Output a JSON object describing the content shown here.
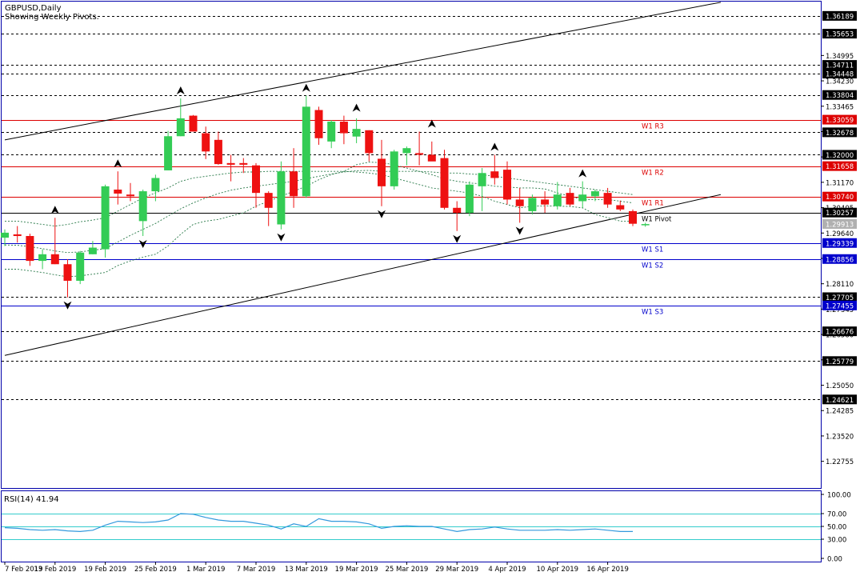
{
  "header": {
    "symbol_label": "GBPUSD,Daily",
    "subtitle": "Showing Weekly Pivots."
  },
  "rsi_label": "RSI(14) 41.94",
  "colors": {
    "bull": "#33cc55",
    "bear": "#ee1111",
    "axis_frame": "#0000aa",
    "price_tag_bg": "#000000",
    "current_tag_bg": "#b0b0b0",
    "resistance": "#dd0000",
    "support": "#0000cc",
    "rsi_level": "#33cccc",
    "rsi_line": "#3399dd",
    "envelope": "#2a7a4a"
  },
  "chart_data": [
    {
      "type": "candlestick",
      "title": "GBPUSD,Daily",
      "subtitle": "Showing Weekly Pivots.",
      "ylim": [
        1.2195,
        1.3662
      ],
      "y_ticks": [
        1.34995,
        1.3423,
        1.33465,
        1.327,
        1.31935,
        1.3117,
        1.30405,
        1.2964,
        1.28875,
        1.2811,
        1.27345,
        1.2658,
        1.25815,
        1.2505,
        1.24285,
        1.2352,
        1.22755
      ],
      "x_tick_labels": [
        {
          "index": 0,
          "label": "7 Feb 2019"
        },
        {
          "index": 4,
          "label": "13 Feb 2019"
        },
        {
          "index": 8,
          "label": "19 Feb 2019"
        },
        {
          "index": 12,
          "label": "25 Feb 2019"
        },
        {
          "index": 16,
          "label": "1 Mar 2019"
        },
        {
          "index": 20,
          "label": "7 Mar 2019"
        },
        {
          "index": 24,
          "label": "13 Mar 2019"
        },
        {
          "index": 28,
          "label": "19 Mar 2019"
        },
        {
          "index": 32,
          "label": "25 Mar 2019"
        },
        {
          "index": 36,
          "label": "29 Mar 2019"
        },
        {
          "index": 40,
          "label": "4 Apr 2019"
        },
        {
          "index": 44,
          "label": "10 Apr 2019"
        },
        {
          "index": 48,
          "label": "16 Apr 2019"
        }
      ],
      "candles": [
        {
          "o": 1.295,
          "h": 1.2975,
          "l": 1.2925,
          "c": 1.2965
        },
        {
          "o": 1.296,
          "h": 1.2985,
          "l": 1.2935,
          "c": 1.2955
        },
        {
          "o": 1.2955,
          "h": 1.2962,
          "l": 1.2865,
          "c": 1.288
        },
        {
          "o": 1.288,
          "h": 1.2915,
          "l": 1.2855,
          "c": 1.29
        },
        {
          "o": 1.29,
          "h": 1.301,
          "l": 1.287,
          "c": 1.287
        },
        {
          "o": 1.287,
          "h": 1.2885,
          "l": 1.277,
          "c": 1.282
        },
        {
          "o": 1.282,
          "h": 1.291,
          "l": 1.281,
          "c": 1.2905
        },
        {
          "o": 1.29,
          "h": 1.294,
          "l": 1.29,
          "c": 1.292
        },
        {
          "o": 1.2915,
          "h": 1.311,
          "l": 1.289,
          "c": 1.3105
        },
        {
          "o": 1.3095,
          "h": 1.315,
          "l": 1.305,
          "c": 1.3083
        },
        {
          "o": 1.308,
          "h": 1.3115,
          "l": 1.306,
          "c": 1.3075
        },
        {
          "o": 1.3,
          "h": 1.3095,
          "l": 1.2955,
          "c": 1.309
        },
        {
          "o": 1.309,
          "h": 1.314,
          "l": 1.306,
          "c": 1.313
        },
        {
          "o": 1.3153,
          "h": 1.3272,
          "l": 1.3153,
          "c": 1.3256
        },
        {
          "o": 1.3256,
          "h": 1.337,
          "l": 1.3256,
          "c": 1.331
        },
        {
          "o": 1.3318,
          "h": 1.332,
          "l": 1.327,
          "c": 1.327
        },
        {
          "o": 1.3265,
          "h": 1.3285,
          "l": 1.3187,
          "c": 1.321
        },
        {
          "o": 1.3245,
          "h": 1.327,
          "l": 1.317,
          "c": 1.3172
        },
        {
          "o": 1.3175,
          "h": 1.32,
          "l": 1.312,
          "c": 1.317
        },
        {
          "o": 1.3175,
          "h": 1.319,
          "l": 1.3145,
          "c": 1.317
        },
        {
          "o": 1.3168,
          "h": 1.3175,
          "l": 1.304,
          "c": 1.3085
        },
        {
          "o": 1.3085,
          "h": 1.309,
          "l": 1.2985,
          "c": 1.304
        },
        {
          "o": 1.299,
          "h": 1.318,
          "l": 1.2975,
          "c": 1.315
        },
        {
          "o": 1.315,
          "h": 1.322,
          "l": 1.304,
          "c": 1.3075
        },
        {
          "o": 1.3075,
          "h": 1.3378,
          "l": 1.307,
          "c": 1.3345
        },
        {
          "o": 1.3335,
          "h": 1.3345,
          "l": 1.323,
          "c": 1.325
        },
        {
          "o": 1.324,
          "h": 1.3305,
          "l": 1.322,
          "c": 1.33
        },
        {
          "o": 1.33,
          "h": 1.3318,
          "l": 1.3232,
          "c": 1.3265
        },
        {
          "o": 1.3255,
          "h": 1.331,
          "l": 1.3235,
          "c": 1.3278
        },
        {
          "o": 1.3274,
          "h": 1.3274,
          "l": 1.318,
          "c": 1.3205
        },
        {
          "o": 1.3188,
          "h": 1.3245,
          "l": 1.3045,
          "c": 1.3105
        },
        {
          "o": 1.3105,
          "h": 1.3215,
          "l": 1.3095,
          "c": 1.321
        },
        {
          "o": 1.3205,
          "h": 1.3225,
          "l": 1.3168,
          "c": 1.322
        },
        {
          "o": 1.3205,
          "h": 1.327,
          "l": 1.3168,
          "c": 1.32
        },
        {
          "o": 1.32,
          "h": 1.324,
          "l": 1.3185,
          "c": 1.318
        },
        {
          "o": 1.319,
          "h": 1.3215,
          "l": 1.3035,
          "c": 1.304
        },
        {
          "o": 1.304,
          "h": 1.306,
          "l": 1.297,
          "c": 1.3025
        },
        {
          "o": 1.3025,
          "h": 1.312,
          "l": 1.3015,
          "c": 1.311
        },
        {
          "o": 1.3105,
          "h": 1.316,
          "l": 1.303,
          "c": 1.3145
        },
        {
          "o": 1.315,
          "h": 1.32,
          "l": 1.311,
          "c": 1.313
        },
        {
          "o": 1.3155,
          "h": 1.318,
          "l": 1.305,
          "c": 1.3065
        },
        {
          "o": 1.3065,
          "h": 1.31,
          "l": 1.2995,
          "c": 1.3045
        },
        {
          "o": 1.303,
          "h": 1.308,
          "l": 1.302,
          "c": 1.307
        },
        {
          "o": 1.3065,
          "h": 1.309,
          "l": 1.3025,
          "c": 1.305
        },
        {
          "o": 1.3045,
          "h": 1.3118,
          "l": 1.3035,
          "c": 1.308
        },
        {
          "o": 1.3085,
          "h": 1.31,
          "l": 1.3045,
          "c": 1.305
        },
        {
          "o": 1.306,
          "h": 1.312,
          "l": 1.304,
          "c": 1.308
        },
        {
          "o": 1.3075,
          "h": 1.3095,
          "l": 1.306,
          "c": 1.309
        },
        {
          "o": 1.3085,
          "h": 1.31,
          "l": 1.304,
          "c": 1.305
        },
        {
          "o": 1.3048,
          "h": 1.3062,
          "l": 1.303,
          "c": 1.3035
        },
        {
          "o": 1.303,
          "h": 1.3035,
          "l": 1.2985,
          "c": 1.2992
        },
        {
          "o": 1.2989,
          "h": 1.2995,
          "l": 1.2983,
          "c": 1.2991
        }
      ],
      "fractals_up": [
        {
          "index": 4,
          "price": 1.301
        },
        {
          "index": 9,
          "price": 1.315
        },
        {
          "index": 14,
          "price": 1.337
        },
        {
          "index": 24,
          "price": 1.3378
        },
        {
          "index": 28,
          "price": 1.3318
        },
        {
          "index": 34,
          "price": 1.327
        },
        {
          "index": 39,
          "price": 1.32
        },
        {
          "index": 46,
          "price": 1.312
        }
      ],
      "fractals_down": [
        {
          "index": 5,
          "price": 1.277
        },
        {
          "index": 11,
          "price": 1.2955
        },
        {
          "index": 22,
          "price": 1.2975
        },
        {
          "index": 30,
          "price": 1.3045
        },
        {
          "index": 36,
          "price": 1.297
        },
        {
          "index": 41,
          "price": 1.2995
        }
      ],
      "upper_band": [
        1.3,
        1.3,
        1.2995,
        1.299,
        1.2985,
        1.299,
        1.2998,
        1.3003,
        1.301,
        1.303,
        1.305,
        1.307,
        1.3085,
        1.31,
        1.312,
        1.313,
        1.3135,
        1.314,
        1.3145,
        1.3148,
        1.3148,
        1.315,
        1.315,
        1.315,
        1.315,
        1.315,
        1.315,
        1.315,
        1.3148,
        1.3145,
        1.314,
        1.313,
        1.312,
        1.311,
        1.31,
        1.3095,
        1.309,
        1.3085,
        1.3075,
        1.306,
        1.305,
        1.304,
        1.3045,
        1.3046,
        1.3045,
        1.3044,
        1.304,
        1.302,
        1.301,
        1.3,
        1.3
      ],
      "mid_band": [
        1.2928,
        1.2927,
        1.2923,
        1.2917,
        1.291,
        1.2905,
        1.2907,
        1.2912,
        1.2917,
        1.2937,
        1.2957,
        1.2975,
        1.2993,
        1.3015,
        1.3037,
        1.3055,
        1.307,
        1.3083,
        1.3093,
        1.31,
        1.3105,
        1.311,
        1.3115,
        1.312,
        1.3128,
        1.3135,
        1.3142,
        1.3148,
        1.3152,
        1.3153,
        1.315,
        1.315,
        1.315,
        1.315,
        1.3148,
        1.3145,
        1.3145,
        1.3142,
        1.314,
        1.3135,
        1.313,
        1.3125,
        1.312,
        1.3115,
        1.311,
        1.3105,
        1.31,
        1.3095,
        1.309,
        1.3085,
        1.308
      ],
      "lower_band": [
        1.2855,
        1.2855,
        1.285,
        1.2845,
        1.2838,
        1.2832,
        1.2835,
        1.284,
        1.2845,
        1.2866,
        1.288,
        1.2891,
        1.29,
        1.2925,
        1.296,
        1.299,
        1.3,
        1.3005,
        1.3015,
        1.3025,
        1.3045,
        1.306,
        1.3075,
        1.309,
        1.3105,
        1.3125,
        1.314,
        1.315,
        1.317,
        1.3178,
        1.3176,
        1.317,
        1.316,
        1.315,
        1.314,
        1.3127,
        1.312,
        1.3115,
        1.3112,
        1.3105,
        1.3103,
        1.31,
        1.31,
        1.3097,
        1.3085,
        1.3075,
        1.3065,
        1.3065,
        1.3065,
        1.306,
        1.3055
      ],
      "pivot_lines": [
        {
          "label": "W1 R3",
          "price": 1.33059,
          "kind": "resistance"
        },
        {
          "label": "W1 R2",
          "price": 1.31658,
          "kind": "resistance"
        },
        {
          "label": "W1 R1",
          "price": 1.3074,
          "kind": "resistance"
        },
        {
          "label": "W1 Pivot",
          "price": 1.30257,
          "kind": "pivot"
        },
        {
          "label": "W1 S1",
          "price": 1.29339,
          "kind": "support"
        },
        {
          "label": "W1 S2",
          "price": 1.28856,
          "kind": "support"
        },
        {
          "label": "W1 S3",
          "price": 1.27455,
          "kind": "support"
        }
      ],
      "dashed_levels": [
        1.36189,
        1.35653,
        1.34711,
        1.34448,
        1.33804,
        1.32678,
        1.32,
        1.27705,
        1.26676,
        1.25779,
        1.24621
      ],
      "current_price": 1.29913,
      "trend_lines": [
        {
          "start": {
            "index": 0,
            "price": 1.3245
          },
          "end": {
            "index": 57,
            "price": 1.366
          }
        },
        {
          "start": {
            "index": 0,
            "price": 1.2595
          },
          "end": {
            "index": 57,
            "price": 1.308
          }
        }
      ]
    },
    {
      "type": "line",
      "title": "RSI(14) 41.94",
      "ylim": [
        -5,
        105
      ],
      "y_ticks": [
        100,
        70,
        50,
        30,
        0
      ],
      "values": [
        48,
        47,
        45,
        44,
        45,
        43,
        42,
        44,
        52,
        58,
        57,
        56,
        57,
        60,
        70,
        69,
        64,
        60,
        58,
        58,
        55,
        52,
        46,
        54,
        50,
        62,
        58,
        58,
        57,
        54,
        47,
        50,
        51,
        50,
        50,
        46,
        42,
        45,
        46,
        49,
        46,
        44,
        44,
        44,
        45,
        44,
        45,
        46,
        44,
        42,
        41.94
      ]
    }
  ]
}
